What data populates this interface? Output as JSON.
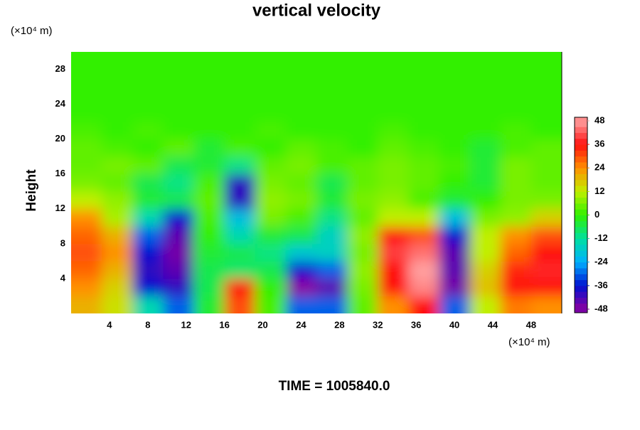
{
  "chart_data": {
    "type": "heatmap",
    "title": "vertical velocity",
    "y_label": "Height",
    "x_unit": "(×10⁴ m)",
    "y_unit": "(×10⁴ m)",
    "annotation": "TIME = 1005840.0",
    "x": [
      1.6,
      4.8,
      8,
      11.2,
      14.4,
      17.6,
      20.8,
      24,
      27.2,
      30.4,
      33.6,
      36.8,
      40,
      43.2,
      46.4,
      49.6
    ],
    "y": [
      1,
      3,
      5,
      7,
      9,
      11,
      13,
      15,
      17,
      19,
      21,
      23,
      25,
      27,
      29
    ],
    "z": [
      [
        20,
        14,
        -14,
        -30,
        -4,
        30,
        2,
        -30,
        -30,
        4,
        24,
        36,
        -30,
        12,
        26,
        24
      ],
      [
        24,
        16,
        -36,
        -40,
        -6,
        36,
        0,
        -48,
        -44,
        6,
        36,
        46,
        -46,
        18,
        36,
        36
      ],
      [
        28,
        20,
        -40,
        -44,
        -6,
        -8,
        -6,
        -36,
        -30,
        8,
        36,
        48,
        -44,
        16,
        34,
        38
      ],
      [
        30,
        24,
        -36,
        -46,
        -4,
        -6,
        -10,
        -18,
        -16,
        6,
        40,
        44,
        -44,
        12,
        28,
        36
      ],
      [
        28,
        20,
        -30,
        -44,
        0,
        -14,
        -4,
        -6,
        -16,
        8,
        36,
        30,
        -36,
        12,
        24,
        30
      ],
      [
        24,
        10,
        -14,
        -36,
        2,
        -20,
        6,
        2,
        -10,
        4,
        12,
        12,
        -20,
        6,
        8,
        16
      ],
      [
        12,
        8,
        -4,
        -6,
        4,
        -40,
        8,
        6,
        -4,
        6,
        8,
        2,
        -4,
        0,
        6,
        6
      ],
      [
        6,
        4,
        -6,
        -10,
        2,
        -40,
        6,
        4,
        -6,
        4,
        6,
        4,
        0,
        -4,
        6,
        4
      ],
      [
        4,
        6,
        4,
        -6,
        -4,
        -10,
        4,
        6,
        2,
        4,
        6,
        4,
        2,
        -4,
        6,
        4
      ],
      [
        4,
        2,
        0,
        4,
        -4,
        2,
        0,
        4,
        2,
        0,
        4,
        2,
        0,
        -4,
        2,
        4
      ],
      [
        2,
        0,
        2,
        0,
        0,
        0,
        2,
        0,
        0,
        0,
        2,
        0,
        0,
        0,
        2,
        0
      ],
      [
        0,
        0,
        0,
        0,
        0,
        0,
        0,
        0,
        0,
        0,
        0,
        0,
        0,
        0,
        0,
        0
      ],
      [
        0,
        0,
        0,
        0,
        0,
        0,
        0,
        0,
        0,
        0,
        0,
        0,
        0,
        0,
        0,
        0
      ],
      [
        0,
        0,
        0,
        0,
        0,
        0,
        0,
        0,
        0,
        0,
        0,
        0,
        0,
        0,
        0,
        0
      ],
      [
        0,
        0,
        0,
        0,
        0,
        0,
        0,
        0,
        0,
        0,
        0,
        0,
        0,
        0,
        0,
        0
      ]
    ],
    "xlim": [
      0,
      51.2
    ],
    "ylim": [
      0,
      30
    ],
    "xticks": [
      4,
      8,
      12,
      16,
      20,
      24,
      28,
      32,
      36,
      40,
      44,
      48
    ],
    "yticks": [
      4,
      8,
      12,
      16,
      20,
      24,
      28
    ],
    "cticks": [
      -48,
      -36,
      -24,
      -12,
      0,
      12,
      24,
      36,
      48
    ],
    "colors": [
      "#8c00a0",
      "#0010d0",
      "#00b0ff",
      "#00e0a0",
      "#30f000",
      "#c0f000",
      "#ff9000",
      "#ff1010",
      "#ffa0a0"
    ]
  }
}
